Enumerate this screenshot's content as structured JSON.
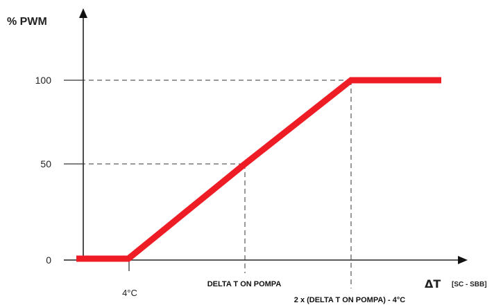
{
  "diagram": {
    "y_axis_label": "% PWM",
    "x_axis_label": "ΔT",
    "x_axis_sublabel": "[SC - SBB]",
    "y_ticks": [
      "100",
      "50",
      "0"
    ],
    "x_ticks": [
      "4°C",
      "DELTA T ON POMPA",
      "2 x (DELTA T ON POMPA) - 4°C"
    ],
    "curve_color": "#ee1c25",
    "curve_points": [
      {
        "x": "0",
        "y": 0
      },
      {
        "x": "4°C",
        "y": 0
      },
      {
        "x": "DELTA T ON POMPA",
        "y": 50
      },
      {
        "x": "2 x (DELTA T ON POMPA) - 4°C",
        "y": 100
      },
      {
        "x": "max",
        "y": 100
      }
    ]
  }
}
